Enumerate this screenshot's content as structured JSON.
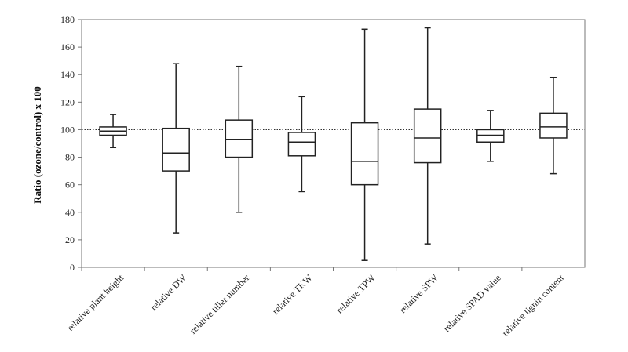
{
  "chart_data": {
    "type": "boxplot",
    "title": "",
    "xlabel": "",
    "ylabel": "Ratio (ozone/control) x 100",
    "ylim": [
      0,
      180
    ],
    "yticks": [
      0,
      20,
      40,
      60,
      80,
      100,
      120,
      140,
      160,
      180
    ],
    "reference_line": 100,
    "reference_line_style": "dotted",
    "grid": false,
    "legend": "none",
    "categories": [
      "relative plant height",
      "relative DW",
      "relative tiller number",
      "relative TKW",
      "relative TPW",
      "relative SPW",
      "relative SPAD value",
      "relative lignin content"
    ],
    "boxes": [
      {
        "min": 87,
        "q1": 96,
        "median": 99,
        "q3": 102,
        "max": 111
      },
      {
        "min": 25,
        "q1": 70,
        "median": 83,
        "q3": 101,
        "max": 148
      },
      {
        "min": 40,
        "q1": 80,
        "median": 93,
        "q3": 107,
        "max": 146
      },
      {
        "min": 55,
        "q1": 81,
        "median": 91,
        "q3": 98,
        "max": 124
      },
      {
        "min": 5,
        "q1": 60,
        "median": 77,
        "q3": 105,
        "max": 173
      },
      {
        "min": 17,
        "q1": 76,
        "median": 94,
        "q3": 115,
        "max": 174
      },
      {
        "min": 77,
        "q1": 91,
        "median": 96,
        "q3": 100,
        "max": 114
      },
      {
        "min": 68,
        "q1": 94,
        "median": 102,
        "q3": 112,
        "max": 138
      }
    ],
    "colors": {
      "line": "#222222",
      "box_fill": "#ffffff",
      "frame": "#777777"
    }
  }
}
